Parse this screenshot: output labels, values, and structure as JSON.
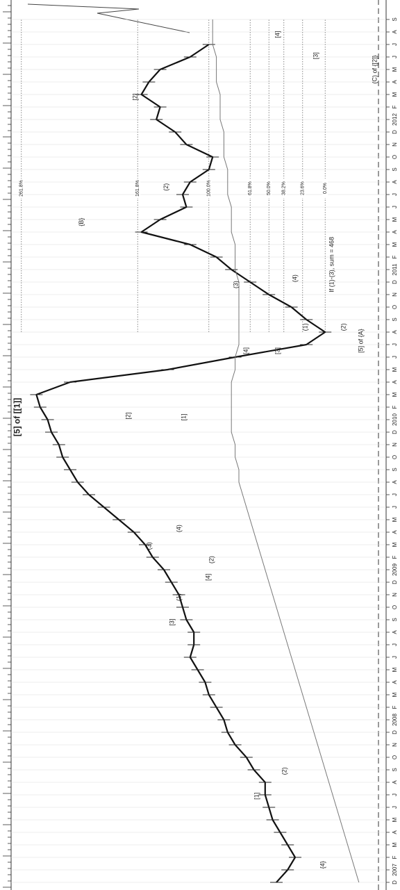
{
  "chart_data": {
    "type": "line",
    "categories": [
      "D",
      "2007",
      "F",
      "M",
      "A",
      "M",
      "J",
      "J",
      "A",
      "S",
      "O",
      "N",
      "D",
      "2008",
      "F",
      "M",
      "A",
      "M",
      "J",
      "J",
      "A",
      "S",
      "O",
      "N",
      "D",
      "2009",
      "F",
      "M",
      "A",
      "M",
      "J",
      "J",
      "A",
      "S",
      "O",
      "N",
      "D",
      "2010",
      "F",
      "M",
      "A",
      "M",
      "J",
      "J",
      "A",
      "S",
      "O",
      "N",
      "D",
      "2011",
      "F",
      "M",
      "A",
      "M",
      "J",
      "J",
      "A",
      "S",
      "O",
      "N",
      "D",
      "2012",
      "F",
      "M",
      "A",
      "M",
      "J",
      "J",
      "A",
      "S"
    ],
    "series": [
      {
        "color": "#111111",
        "values": [
          30,
          27,
          25,
          27,
          29,
          31,
          32,
          33,
          33,
          36,
          38,
          41,
          43,
          44,
          46,
          48,
          49,
          51,
          53,
          52,
          52,
          54,
          55,
          56,
          58,
          60,
          63,
          65,
          68,
          72,
          76,
          80,
          83,
          85,
          87,
          88,
          90,
          91,
          93,
          94,
          85,
          59,
          41,
          22,
          17,
          22,
          26,
          32,
          37,
          42,
          46,
          53,
          66,
          61,
          54,
          55,
          53,
          48,
          47,
          54,
          57,
          62,
          61,
          66,
          64,
          61,
          53,
          48,
          null,
          null
        ]
      },
      {
        "color": "#777777",
        "values": [
          8,
          9,
          10,
          11,
          12,
          13,
          14,
          15,
          16,
          17,
          18,
          19,
          20,
          21,
          22,
          23,
          24,
          25,
          26,
          27,
          28,
          29,
          30,
          31,
          32,
          33,
          34,
          35,
          36,
          37,
          38,
          39,
          40,
          40,
          41,
          41,
          42,
          42,
          42,
          42,
          42,
          41,
          41,
          40,
          40,
          40,
          40,
          40,
          40,
          41,
          41,
          41,
          42,
          42,
          42,
          43,
          43,
          43,
          44,
          44,
          44,
          45,
          45,
          45,
          46,
          46,
          46,
          47,
          47,
          47
        ]
      }
    ],
    "ylim": [
      0,
      100
    ],
    "levels": [
      {
        "label": "261.8%",
        "value": 98
      },
      {
        "label": "161.8%",
        "value": 67
      },
      {
        "label": "100.0%",
        "value": 48
      },
      {
        "label": "61.8%",
        "value": 37
      },
      {
        "label": "50.0%",
        "value": 32
      },
      {
        "label": "38.2%",
        "value": 28
      },
      {
        "label": "23.6%",
        "value": 23
      },
      {
        "label": "0.0%",
        "value": 17
      }
    ],
    "annotations": [
      {
        "text": "{4}",
        "x": 1.4,
        "y": 17.6
      },
      {
        "text": "[1]",
        "x": 6.9,
        "y": 35.2
      },
      {
        "text": "(2)",
        "x": 8.9,
        "y": 27.8
      },
      {
        "text": "[3]",
        "x": 20.8,
        "y": 57.8
      },
      {
        "text": "(1)",
        "x": 22.8,
        "y": 55.9
      },
      {
        "text": "[4]",
        "x": 24.4,
        "y": 48.1
      },
      {
        "text": "(2)",
        "x": 25.8,
        "y": 47.2
      },
      {
        "text": "(3)",
        "x": 26.9,
        "y": 63.9
      },
      {
        "text": "(4)",
        "x": 28.3,
        "y": 55.9
      },
      {
        "text": "[5] of [[1]]",
        "x": 37.2,
        "y": 99
      },
      {
        "text": "[2]",
        "x": 37.3,
        "y": 69.4
      },
      {
        "text": "[1]",
        "x": 37.2,
        "y": 54.6
      },
      {
        "text": "[4]",
        "x": 42.5,
        "y": 38
      },
      {
        "text": "[3]",
        "x": 42.5,
        "y": 29.6
      },
      {
        "text": "[5] of {A}",
        "x": 43.3,
        "y": 7.4
      },
      {
        "text": "(1)",
        "x": 44.4,
        "y": 22.2
      },
      {
        "text": "(2)",
        "x": 44.4,
        "y": 12
      },
      {
        "text": "(3)",
        "x": 47.8,
        "y": 40.7
      },
      {
        "text": "(4)",
        "x": 48.3,
        "y": 25
      },
      {
        "text": "If (1)-(3), sum = 468",
        "x": 49.4,
        "y": 15.2
      },
      {
        "text": "{B}",
        "x": 52.8,
        "y": 81.9
      },
      {
        "text": "(2)",
        "x": 55.6,
        "y": 59.3
      },
      {
        "text": "[2]",
        "x": 62.8,
        "y": 67.6
      },
      {
        "text": "(C) of {[2]}",
        "x": 65,
        "y": 3.7
      },
      {
        "text": "[3]",
        "x": 66.1,
        "y": 19.4
      },
      {
        "text": "[4]",
        "x": 67.8,
        "y": 29.6
      }
    ]
  }
}
